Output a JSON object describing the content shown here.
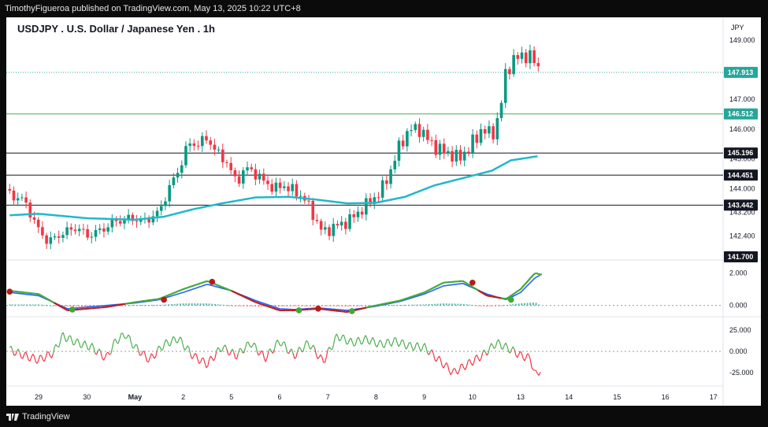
{
  "header": {
    "publish_line": "TimothyFigueroa published on TradingView.com, May 13, 2025 10:22 UTC+8"
  },
  "footer": {
    "brand": "TradingView"
  },
  "colors": {
    "up": "#089981",
    "down": "#f23645",
    "sma": "#21b8c8",
    "macd_fast": "#3fa83a",
    "macd_slow": "#2962ff",
    "wave_red": "#b71c1c",
    "rsi_up": "#4caf50",
    "rsi_down": "#f23645",
    "price_line": "#26a69a"
  },
  "chart_data": [
    {
      "type": "candlestick",
      "title": "USDJPY . U.S. Dollar / Japanese Yen . 1h",
      "currency": "JPY",
      "ylim": [
        141.7,
        149.5
      ],
      "y_ticks": [
        {
          "value": 149.0,
          "label": "149.000"
        },
        {
          "value": 147.0,
          "label": "147.000"
        },
        {
          "value": 146.0,
          "label": "146.000"
        },
        {
          "value": 145.0,
          "label": "145.000"
        },
        {
          "value": 144.0,
          "label": "144.000"
        },
        {
          "value": 143.2,
          "label": "143.200"
        },
        {
          "value": 142.4,
          "label": "142.400"
        }
      ],
      "x_ticks": [
        {
          "label": "29",
          "day": 0
        },
        {
          "label": "30",
          "day": 1
        },
        {
          "label": "May",
          "day": 2
        },
        {
          "label": "2",
          "day": 3
        },
        {
          "label": "5",
          "day": 4
        },
        {
          "label": "6",
          "day": 5
        },
        {
          "label": "7",
          "day": 6
        },
        {
          "label": "8",
          "day": 7
        },
        {
          "label": "9",
          "day": 8
        },
        {
          "label": "10",
          "day": 9
        },
        {
          "label": "13",
          "day": 10
        },
        {
          "label": "14",
          "day": 11
        },
        {
          "label": "15",
          "day": 12
        },
        {
          "label": "16",
          "day": 13
        },
        {
          "label": "17",
          "day": 14
        }
      ],
      "horizontal_levels": [
        {
          "value": 147.913,
          "label": "147.913",
          "style": "dotted",
          "color": "#26a69a",
          "badge": "#26a69a"
        },
        {
          "value": 146.512,
          "label": "146.512",
          "style": "solid",
          "color": "#4caf50",
          "badge": "#26a69a"
        },
        {
          "value": 145.196,
          "label": "145.196",
          "style": "solid",
          "color": "#131722",
          "badge": "#131722"
        },
        {
          "value": 144.451,
          "label": "144.451",
          "style": "solid",
          "color": "#131722",
          "badge": "#131722"
        },
        {
          "value": 143.442,
          "label": "143.442",
          "style": "solid",
          "color": "#131722",
          "badge": "#131722"
        },
        {
          "value": 141.7,
          "label": "141.700",
          "style": "none",
          "color": "#131722",
          "badge": "#131722"
        }
      ],
      "close_path": [
        {
          "day": -0.6,
          "close": 143.8
        },
        {
          "day": -0.3,
          "close": 143.6
        },
        {
          "day": 0.0,
          "close": 142.6
        },
        {
          "day": 0.2,
          "close": 142.2
        },
        {
          "day": 0.5,
          "close": 142.5
        },
        {
          "day": 0.8,
          "close": 142.7
        },
        {
          "day": 1.0,
          "close": 142.4
        },
        {
          "day": 1.3,
          "close": 142.6
        },
        {
          "day": 1.6,
          "close": 142.9
        },
        {
          "day": 1.9,
          "close": 143.0
        },
        {
          "day": 2.2,
          "close": 142.9
        },
        {
          "day": 2.5,
          "close": 143.2
        },
        {
          "day": 2.7,
          "close": 144.0
        },
        {
          "day": 2.9,
          "close": 144.6
        },
        {
          "day": 3.1,
          "close": 145.5
        },
        {
          "day": 3.3,
          "close": 145.5
        },
        {
          "day": 3.5,
          "close": 145.7
        },
        {
          "day": 3.7,
          "close": 145.2
        },
        {
          "day": 3.9,
          "close": 144.9
        },
        {
          "day": 4.1,
          "close": 144.2
        },
        {
          "day": 4.3,
          "close": 144.7
        },
        {
          "day": 4.5,
          "close": 144.5
        },
        {
          "day": 4.7,
          "close": 144.2
        },
        {
          "day": 4.9,
          "close": 144.0
        },
        {
          "day": 5.1,
          "close": 144.1
        },
        {
          "day": 5.3,
          "close": 143.9
        },
        {
          "day": 5.5,
          "close": 143.7
        },
        {
          "day": 5.7,
          "close": 143.1
        },
        {
          "day": 5.9,
          "close": 142.5
        },
        {
          "day": 6.1,
          "close": 142.7
        },
        {
          "day": 6.3,
          "close": 142.8
        },
        {
          "day": 6.5,
          "close": 143.0
        },
        {
          "day": 6.7,
          "close": 143.3
        },
        {
          "day": 6.9,
          "close": 143.6
        },
        {
          "day": 7.1,
          "close": 143.9
        },
        {
          "day": 7.3,
          "close": 144.6
        },
        {
          "day": 7.5,
          "close": 145.5
        },
        {
          "day": 7.7,
          "close": 146.0
        },
        {
          "day": 7.9,
          "close": 146.0
        },
        {
          "day": 8.1,
          "close": 145.6
        },
        {
          "day": 8.3,
          "close": 145.3
        },
        {
          "day": 8.5,
          "close": 145.2
        },
        {
          "day": 8.7,
          "close": 145.0
        },
        {
          "day": 8.9,
          "close": 145.3
        },
        {
          "day": 9.2,
          "close": 146.0
        },
        {
          "day": 9.4,
          "close": 145.8
        },
        {
          "day": 9.55,
          "close": 146.4
        },
        {
          "day": 9.7,
          "close": 148.0
        },
        {
          "day": 9.9,
          "close": 148.4
        },
        {
          "day": 10.1,
          "close": 148.5
        },
        {
          "day": 10.3,
          "close": 148.3
        },
        {
          "day": 10.4,
          "close": 147.913
        }
      ],
      "sma_path": [
        {
          "day": -0.6,
          "value": 143.1
        },
        {
          "day": 0.0,
          "value": 143.15
        },
        {
          "day": 1.0,
          "value": 143.0
        },
        {
          "day": 2.0,
          "value": 142.95
        },
        {
          "day": 2.6,
          "value": 143.05
        },
        {
          "day": 3.2,
          "value": 143.3
        },
        {
          "day": 3.8,
          "value": 143.5
        },
        {
          "day": 4.5,
          "value": 143.7
        },
        {
          "day": 5.2,
          "value": 143.72
        },
        {
          "day": 5.8,
          "value": 143.62
        },
        {
          "day": 6.4,
          "value": 143.5
        },
        {
          "day": 7.0,
          "value": 143.52
        },
        {
          "day": 7.6,
          "value": 143.72
        },
        {
          "day": 8.2,
          "value": 144.1
        },
        {
          "day": 8.8,
          "value": 144.35
        },
        {
          "day": 9.4,
          "value": 144.6
        },
        {
          "day": 9.8,
          "value": 144.95
        },
        {
          "day": 10.4,
          "value": 145.1
        }
      ]
    },
    {
      "type": "line",
      "name": "oscillator",
      "ylim": [
        -0.4,
        2.5
      ],
      "y_ticks": [
        {
          "value": 2.0,
          "label": "2.000"
        },
        {
          "value": 0.0,
          "label": "0.000"
        }
      ],
      "fast": [
        {
          "day": -0.6,
          "value": 0.9
        },
        {
          "day": 0.0,
          "value": 0.7
        },
        {
          "day": 0.6,
          "value": -0.3
        },
        {
          "day": 1.4,
          "value": -0.1
        },
        {
          "day": 2.0,
          "value": 0.2
        },
        {
          "day": 2.5,
          "value": 0.4
        },
        {
          "day": 3.0,
          "value": 1.0
        },
        {
          "day": 3.5,
          "value": 1.5
        },
        {
          "day": 4.0,
          "value": 0.9
        },
        {
          "day": 4.5,
          "value": 0.2
        },
        {
          "day": 5.0,
          "value": -0.3
        },
        {
          "day": 5.3,
          "value": -0.3
        },
        {
          "day": 5.8,
          "value": -0.2
        },
        {
          "day": 6.4,
          "value": -0.4
        },
        {
          "day": 7.0,
          "value": 0.0
        },
        {
          "day": 7.5,
          "value": 0.3
        },
        {
          "day": 8.0,
          "value": 0.8
        },
        {
          "day": 8.4,
          "value": 1.4
        },
        {
          "day": 8.8,
          "value": 1.5
        },
        {
          "day": 9.3,
          "value": 0.6
        },
        {
          "day": 9.7,
          "value": 0.4
        },
        {
          "day": 10.0,
          "value": 1.0
        },
        {
          "day": 10.3,
          "value": 2.0
        },
        {
          "day": 10.4,
          "value": 1.9
        }
      ],
      "slow": [
        {
          "day": -0.6,
          "value": 0.8
        },
        {
          "day": 0.0,
          "value": 0.6
        },
        {
          "day": 0.6,
          "value": -0.2
        },
        {
          "day": 1.4,
          "value": 0.0
        },
        {
          "day": 2.0,
          "value": 0.15
        },
        {
          "day": 2.5,
          "value": 0.35
        },
        {
          "day": 3.0,
          "value": 0.8
        },
        {
          "day": 3.5,
          "value": 1.3
        },
        {
          "day": 4.0,
          "value": 0.9
        },
        {
          "day": 4.5,
          "value": 0.3
        },
        {
          "day": 5.0,
          "value": -0.2
        },
        {
          "day": 5.3,
          "value": -0.25
        },
        {
          "day": 5.8,
          "value": -0.15
        },
        {
          "day": 6.4,
          "value": -0.3
        },
        {
          "day": 7.0,
          "value": -0.05
        },
        {
          "day": 7.5,
          "value": 0.25
        },
        {
          "day": 8.0,
          "value": 0.7
        },
        {
          "day": 8.4,
          "value": 1.2
        },
        {
          "day": 8.8,
          "value": 1.35
        },
        {
          "day": 9.3,
          "value": 0.7
        },
        {
          "day": 9.7,
          "value": 0.35
        },
        {
          "day": 10.0,
          "value": 0.8
        },
        {
          "day": 10.3,
          "value": 1.7
        },
        {
          "day": 10.4,
          "value": 1.85
        }
      ],
      "cross_dots": [
        {
          "day": -0.6,
          "value": 0.85,
          "color": "#b71c1c"
        },
        {
          "day": 0.7,
          "value": -0.25,
          "color": "#3fa83a"
        },
        {
          "day": 2.6,
          "value": 0.35,
          "color": "#b71c1c"
        },
        {
          "day": 3.6,
          "value": 1.45,
          "color": "#b71c1c"
        },
        {
          "day": 5.4,
          "value": -0.3,
          "color": "#3fa83a"
        },
        {
          "day": 5.8,
          "value": -0.2,
          "color": "#b71c1c"
        },
        {
          "day": 6.5,
          "value": -0.35,
          "color": "#3fa83a"
        },
        {
          "day": 9.0,
          "value": 1.4,
          "color": "#b71c1c"
        },
        {
          "day": 9.8,
          "value": 0.35,
          "color": "#3fa83a"
        }
      ]
    },
    {
      "type": "line",
      "name": "rsi-oscillator",
      "ylim": [
        -35,
        35
      ],
      "y_ticks": [
        {
          "value": 25.0,
          "label": "25.000"
        },
        {
          "value": 0.0,
          "label": "0.000"
        },
        {
          "value": -25.0,
          "label": "-25.000"
        }
      ],
      "values": [
        {
          "day": -0.6,
          "value": 2
        },
        {
          "day": -0.3,
          "value": -5
        },
        {
          "day": 0.0,
          "value": -10
        },
        {
          "day": 0.3,
          "value": -2
        },
        {
          "day": 0.5,
          "value": 18
        },
        {
          "day": 0.8,
          "value": 10
        },
        {
          "day": 1.1,
          "value": 5
        },
        {
          "day": 1.4,
          "value": -8
        },
        {
          "day": 1.6,
          "value": 12
        },
        {
          "day": 1.8,
          "value": 20
        },
        {
          "day": 2.0,
          "value": 5
        },
        {
          "day": 2.3,
          "value": -10
        },
        {
          "day": 2.6,
          "value": 8
        },
        {
          "day": 2.9,
          "value": 15
        },
        {
          "day": 3.2,
          "value": -5
        },
        {
          "day": 3.5,
          "value": -15
        },
        {
          "day": 3.8,
          "value": 5
        },
        {
          "day": 4.1,
          "value": -5
        },
        {
          "day": 4.4,
          "value": 10
        },
        {
          "day": 4.7,
          "value": -8
        },
        {
          "day": 5.0,
          "value": 12
        },
        {
          "day": 5.3,
          "value": -5
        },
        {
          "day": 5.6,
          "value": 10
        },
        {
          "day": 5.9,
          "value": -12
        },
        {
          "day": 6.2,
          "value": 18
        },
        {
          "day": 6.5,
          "value": 10
        },
        {
          "day": 6.8,
          "value": 14
        },
        {
          "day": 7.1,
          "value": 8
        },
        {
          "day": 7.4,
          "value": 12
        },
        {
          "day": 7.7,
          "value": 6
        },
        {
          "day": 8.0,
          "value": 5
        },
        {
          "day": 8.3,
          "value": -10
        },
        {
          "day": 8.6,
          "value": -25
        },
        {
          "day": 8.9,
          "value": -15
        },
        {
          "day": 9.2,
          "value": -5
        },
        {
          "day": 9.5,
          "value": 10
        },
        {
          "day": 9.8,
          "value": 2
        },
        {
          "day": 10.0,
          "value": -5
        },
        {
          "day": 10.2,
          "value": -8
        },
        {
          "day": 10.3,
          "value": -28
        },
        {
          "day": 10.4,
          "value": -22
        }
      ]
    }
  ]
}
